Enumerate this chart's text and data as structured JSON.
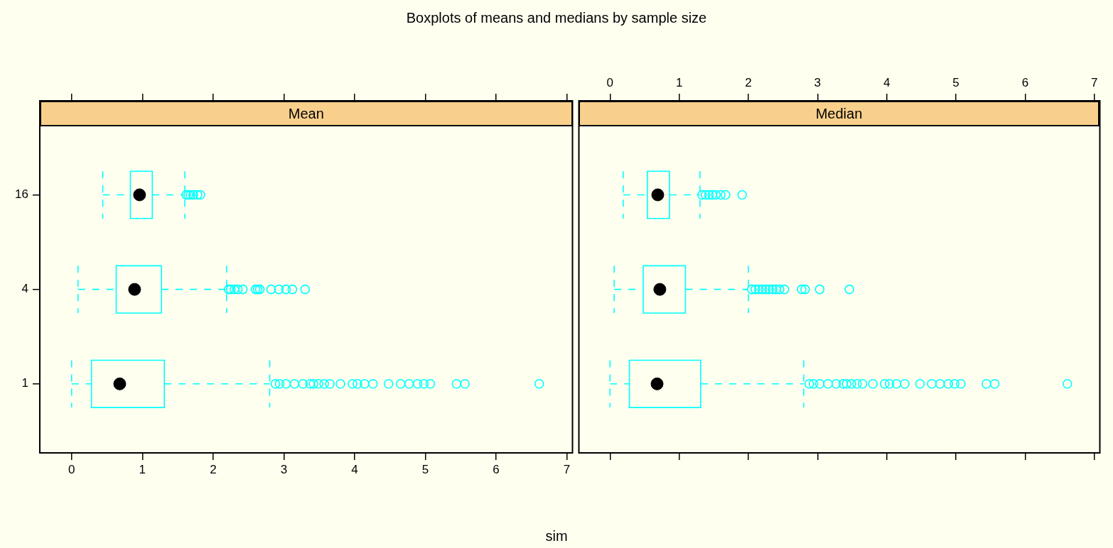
{
  "chart_data": [
    {
      "type": "box",
      "orientation": "horizontal",
      "title": "Mean",
      "xlabel": "sim",
      "annotations": [
        "Boxplots of means and medians by sample size"
      ],
      "categories": [
        "16",
        "4",
        "1"
      ],
      "series": [
        {
          "color": "#00ffff",
          "boxes": [
            {
              "low": 0.44,
              "q1": 0.83,
              "median": 0.96,
              "q3": 1.14,
              "high": 1.6,
              "outliers": [
                1.62,
                1.65,
                1.68,
                1.72,
                1.78,
                1.82
              ]
            },
            {
              "low": 0.09,
              "q1": 0.63,
              "median": 0.89,
              "q3": 1.27,
              "high": 2.19,
              "outliers": [
                2.22,
                2.25,
                2.3,
                2.35,
                2.42,
                2.6,
                2.63,
                2.66,
                2.82,
                2.93,
                3.03,
                3.12,
                3.3
              ]
            },
            {
              "low": 0.0,
              "q1": 0.28,
              "median": 0.68,
              "q3": 1.31,
              "high": 2.8,
              "outliers": [
                2.88,
                2.94,
                3.03,
                3.15,
                3.27,
                3.37,
                3.42,
                3.49,
                3.57,
                3.65,
                3.8,
                3.97,
                4.04,
                4.14,
                4.26,
                4.48,
                4.65,
                4.77,
                4.89,
                4.98,
                5.07,
                5.44,
                5.56,
                6.61
              ]
            }
          ]
        }
      ],
      "xlim": [
        -0.45,
        7.08
      ],
      "xticks": [
        0,
        1,
        2,
        3,
        4,
        5,
        6,
        7
      ]
    },
    {
      "type": "box",
      "orientation": "horizontal",
      "title": "Median",
      "categories": [
        null,
        null,
        null
      ],
      "series": [
        {
          "color": "#00ffff",
          "boxes": [
            {
              "low": 0.19,
              "q1": 0.54,
              "median": 0.69,
              "q3": 0.86,
              "high": 1.3,
              "outliers": [
                1.33,
                1.38,
                1.43,
                1.48,
                1.53,
                1.6,
                1.67,
                1.91
              ]
            },
            {
              "low": 0.06,
              "q1": 0.48,
              "median": 0.72,
              "q3": 1.09,
              "high": 2.0,
              "outliers": [
                2.05,
                2.1,
                2.15,
                2.2,
                2.25,
                2.3,
                2.35,
                2.4,
                2.45,
                2.52,
                2.77,
                2.82,
                3.03,
                3.46
              ]
            },
            {
              "low": 0.0,
              "q1": 0.28,
              "median": 0.68,
              "q3": 1.31,
              "high": 2.8,
              "outliers": [
                2.88,
                2.94,
                3.03,
                3.15,
                3.27,
                3.37,
                3.42,
                3.49,
                3.57,
                3.65,
                3.8,
                3.97,
                4.04,
                4.14,
                4.26,
                4.48,
                4.65,
                4.77,
                4.89,
                4.98,
                5.07,
                5.44,
                5.56,
                6.61
              ]
            }
          ]
        }
      ],
      "xlim": [
        -0.45,
        7.08
      ],
      "xticks": [
        0,
        1,
        2,
        3,
        4,
        5,
        6,
        7
      ]
    }
  ]
}
